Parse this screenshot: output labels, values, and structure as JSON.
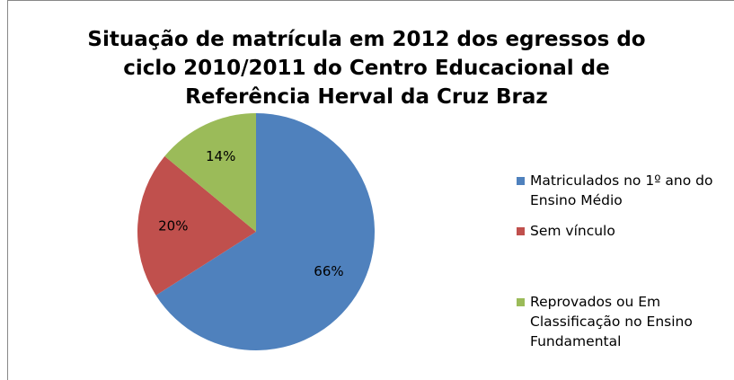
{
  "chart_data": {
    "type": "pie",
    "title": "Situação de matrícula em 2012 dos egressos do ciclo 2010/2011 do Centro Educacional de Referência Herval da Cruz Braz",
    "categories": [
      "Matriculados no 1º ano do Ensino Médio",
      "Sem vínculo",
      "Reprovados ou Em Classificação no Ensino Fundamental"
    ],
    "values": [
      66,
      20,
      14
    ],
    "value_labels": [
      "66%",
      "20%",
      "14%"
    ],
    "colors": [
      "#4f81bd",
      "#c0504d",
      "#9bbb59"
    ],
    "legend": "right"
  }
}
